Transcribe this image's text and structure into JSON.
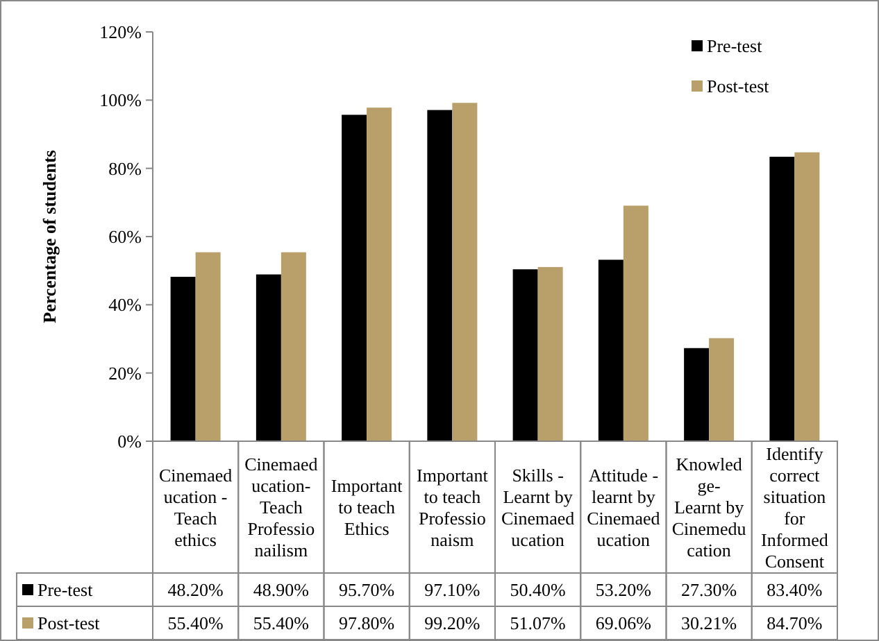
{
  "chart_data": {
    "type": "bar",
    "ylabel": "Percentage of students",
    "categories": [
      "Cinemaed\nucation -\nTeach\nethics",
      "Cinemaed\nucation-\nTeach\nProfessio\nnailism",
      "Important\nto teach\nEthics",
      "Important\nto teach\nProfessio\nnaism",
      "Skills -\nLearnt by\nCinemaed\nucation",
      "Attitude -\nlearnt by\nCinemaed\nucation",
      "Knowled\nge-\nLearnt by\nCinemedu\ncation",
      "Identify\ncorrect\nsituation\nfor\nInformed\nConsent"
    ],
    "series": [
      {
        "name": "Pre-test",
        "color": "#000000",
        "values": [
          48.2,
          48.9,
          95.7,
          97.1,
          50.4,
          53.2,
          27.3,
          83.4
        ],
        "value_labels": [
          "48.20%",
          "48.90%",
          "95.70%",
          "97.10%",
          "50.40%",
          "53.20%",
          "27.30%",
          "83.40%"
        ]
      },
      {
        "name": "Post-test",
        "color": "#b9a06b",
        "values": [
          55.4,
          55.4,
          97.8,
          99.2,
          51.07,
          69.06,
          30.21,
          84.7
        ],
        "value_labels": [
          "55.40%",
          "55.40%",
          "97.80%",
          "99.20%",
          "51.07%",
          "69.06%",
          "30.21%",
          "84.70%"
        ]
      }
    ],
    "ylim": [
      0,
      120
    ],
    "yticks": [
      {
        "value": 0,
        "label": "0%"
      },
      {
        "value": 20,
        "label": "20%"
      },
      {
        "value": 40,
        "label": "40%"
      },
      {
        "value": 60,
        "label": "60%"
      },
      {
        "value": 80,
        "label": "80%"
      },
      {
        "value": 100,
        "label": "100%"
      },
      {
        "value": 120,
        "label": "120%"
      }
    ],
    "legend": "top right",
    "grid": false
  }
}
